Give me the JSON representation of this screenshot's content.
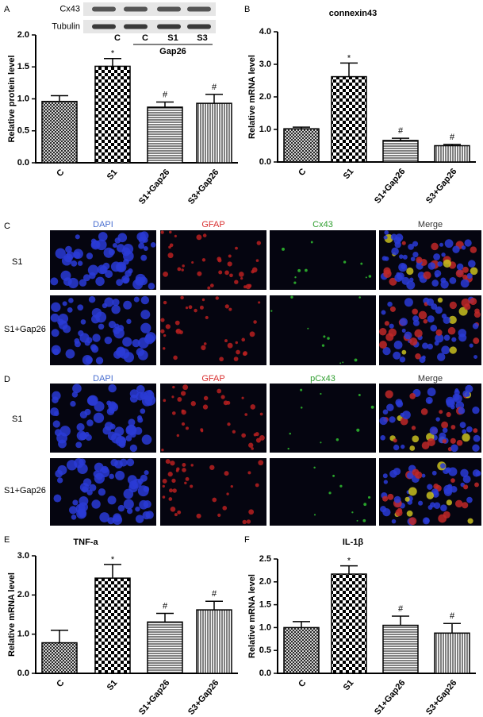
{
  "chart_data": [
    {
      "type": "bar",
      "panel": "A",
      "ylabel": "Relative protein level",
      "categories": [
        "C",
        "S1",
        "S1+Gap26",
        "S3+Gap26"
      ],
      "values": [
        0.96,
        1.51,
        0.87,
        0.93
      ],
      "errors": [
        0.09,
        0.12,
        0.08,
        0.14
      ],
      "annotations": [
        null,
        "*",
        "#",
        "#"
      ],
      "color": "#000000",
      "ylim": [
        0,
        2
      ],
      "yticks": [
        {
          "value": 0,
          "label": "0.0"
        },
        0.5,
        {
          "value": 1,
          "label": "1.0"
        },
        1.5,
        {
          "value": 2,
          "label": "2.0"
        }
      ]
    },
    {
      "type": "bar",
      "panel": "B",
      "title": "connexin43",
      "ylabel": "Relative mRNA level",
      "categories": [
        "C",
        "S1",
        "S1+Gap26",
        "S3+Gap26"
      ],
      "values": [
        1.02,
        2.62,
        0.66,
        0.5
      ],
      "errors": [
        0.05,
        0.42,
        0.07,
        0.04
      ],
      "annotations": [
        null,
        "*",
        "#",
        "#"
      ],
      "color": "#000000",
      "ylim": [
        0,
        4
      ],
      "yticks": [
        {
          "value": 0,
          "label": "0.0"
        },
        {
          "value": 1,
          "label": "1.0"
        },
        {
          "value": 2,
          "label": "2.0"
        },
        {
          "value": 3,
          "label": "3.0"
        },
        {
          "value": 4,
          "label": "4.0"
        }
      ]
    },
    {
      "type": "bar",
      "panel": "E",
      "title": "TNF-a",
      "ylabel": "Relative mRNA level",
      "categories": [
        "C",
        "S1",
        "S1+Gap26",
        "S3+Gap26"
      ],
      "values": [
        0.78,
        2.43,
        1.31,
        1.62
      ],
      "errors": [
        0.32,
        0.35,
        0.22,
        0.22
      ],
      "annotations": [
        null,
        "*",
        "#",
        "#"
      ],
      "color": "#000000",
      "ylim": [
        0,
        3
      ],
      "yticks": [
        {
          "value": 0,
          "label": "0.0"
        },
        {
          "value": 1,
          "label": "1.0"
        },
        {
          "value": 2,
          "label": "2.0"
        },
        {
          "value": 3,
          "label": "3.0"
        }
      ]
    },
    {
      "type": "bar",
      "panel": "F",
      "title": "IL-1β",
      "ylabel": "Relative mRNA level",
      "categories": [
        "C",
        "S1",
        "S1+Gap26",
        "S3+Gap26"
      ],
      "values": [
        1.0,
        2.17,
        1.05,
        0.88
      ],
      "errors": [
        0.13,
        0.18,
        0.2,
        0.21
      ],
      "annotations": [
        null,
        "*",
        "#",
        "#"
      ],
      "color": "#000000",
      "ylim": [
        0,
        2.5
      ],
      "yticks": [
        {
          "value": 0,
          "label": "0.0"
        },
        0.5,
        {
          "value": 1,
          "label": "1.0"
        },
        1.5,
        {
          "value": 2,
          "label": "2.0"
        },
        2.5
      ]
    }
  ],
  "western_blot": {
    "rows": [
      "Cx43",
      "Tubulin"
    ],
    "lanes": [
      "C",
      "C",
      "S1",
      "S3"
    ],
    "group": "Gap26"
  },
  "micrographs": [
    {
      "panel": "C",
      "columns": [
        "DAPI",
        "GFAP",
        "Cx43",
        "Merge"
      ],
      "rows": [
        "S1",
        "S1+Gap26"
      ]
    },
    {
      "panel": "D",
      "columns": [
        "DAPI",
        "GFAP",
        "pCx43",
        "Merge"
      ],
      "rows": [
        "S1",
        "S1+Gap26"
      ]
    }
  ]
}
